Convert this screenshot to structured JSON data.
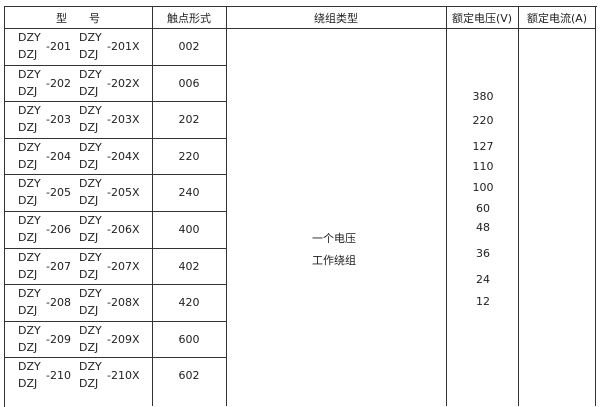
{
  "header": {
    "model": "型　　号",
    "contact": "触点形式",
    "winding": "绕组类型",
    "voltage": "额定电压(V)",
    "current": "额定电流(A)"
  },
  "rows": [
    {
      "a": "-201",
      "b": "-201X",
      "contact": "002"
    },
    {
      "a": "-202",
      "b": "-202X",
      "contact": "006"
    },
    {
      "a": "-203",
      "b": "-203X",
      "contact": "202"
    },
    {
      "a": "-204",
      "b": "-204X",
      "contact": "220"
    },
    {
      "a": "-205",
      "b": "-205X",
      "contact": "240"
    },
    {
      "a": "-206",
      "b": "-206X",
      "contact": "400"
    },
    {
      "a": "-207",
      "b": "-207X",
      "contact": "402"
    },
    {
      "a": "-208",
      "b": "-208X",
      "contact": "420"
    },
    {
      "a": "-209",
      "b": "-209X",
      "contact": "600"
    },
    {
      "a": "-210",
      "b": "-210X",
      "contact": "602"
    }
  ],
  "prefix_top": "DZY",
  "prefix_bottom": "DZJ",
  "winding": {
    "line1": "一个电压",
    "line2": "工作绕组"
  },
  "voltages": [
    "380",
    "220",
    "127",
    "110",
    "100",
    "60",
    "48",
    "36",
    "24",
    "12"
  ]
}
